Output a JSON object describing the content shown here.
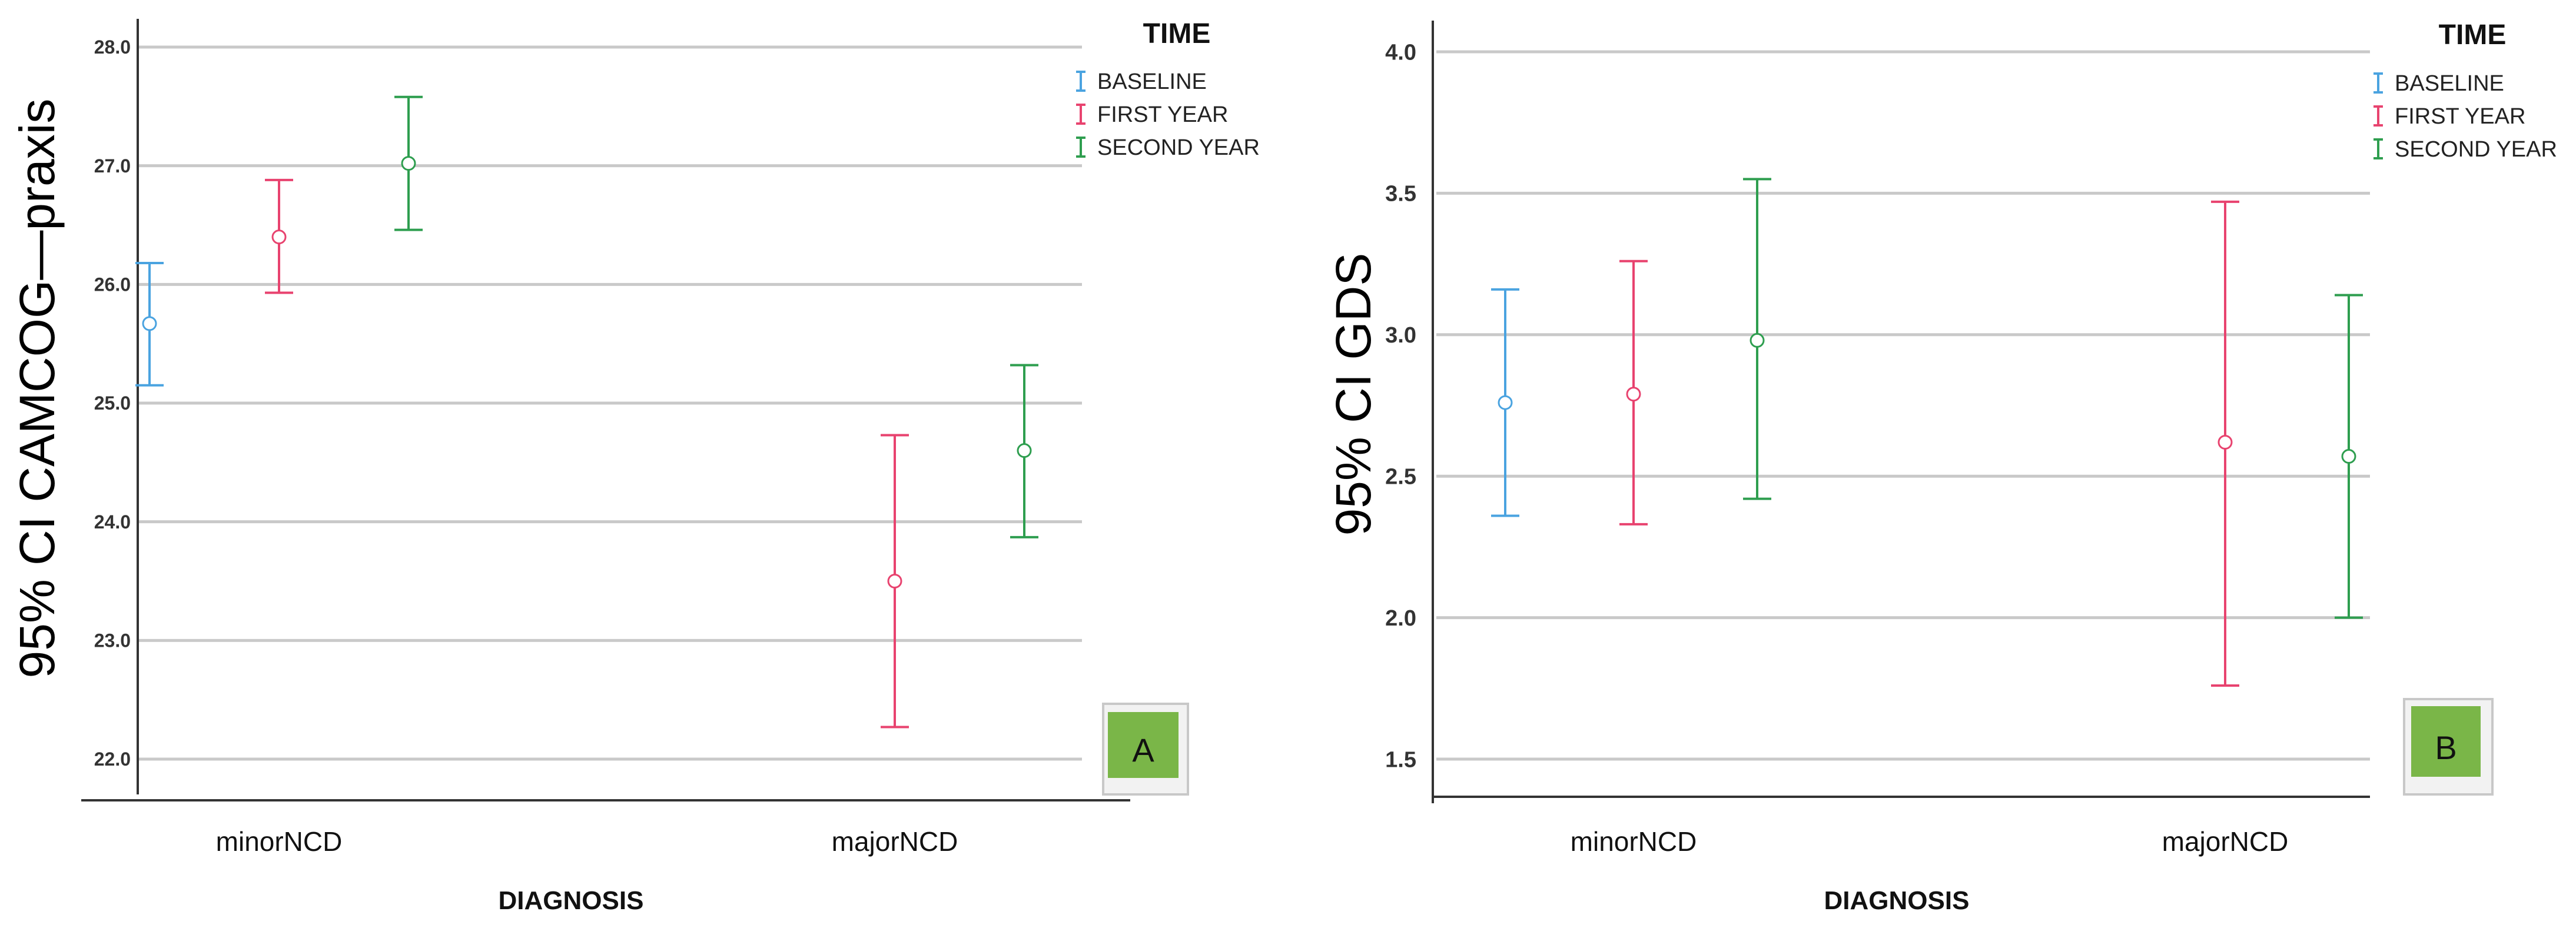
{
  "chart_data": [
    {
      "panel": "A",
      "type": "errorbar",
      "ylabel": "95% CI CAMCOG—praxis",
      "xlabel": "DIAGNOSIS",
      "legend_title": "TIME",
      "ylim": [
        21.8,
        28.3
      ],
      "yticks": [
        "22.0",
        "23.0",
        "24.0",
        "25.0",
        "26.0",
        "27.0",
        "28.0"
      ],
      "categories": [
        "minorNCD",
        "majorNCD"
      ],
      "series": [
        {
          "name": "BASELINE",
          "color": "#4aa3e0",
          "points": [
            {
              "category": "minorNCD",
              "mean": 25.67,
              "low": 25.15,
              "high": 26.18
            }
          ]
        },
        {
          "name": "FIRST YEAR",
          "color": "#e8436f",
          "points": [
            {
              "category": "minorNCD",
              "mean": 26.4,
              "low": 25.93,
              "high": 26.88
            },
            {
              "category": "majorNCD",
              "mean": 23.5,
              "low": 22.27,
              "high": 24.73
            }
          ]
        },
        {
          "name": "SECOND YEAR",
          "color": "#2e9e4f",
          "points": [
            {
              "category": "minorNCD",
              "mean": 27.02,
              "low": 26.46,
              "high": 27.58
            },
            {
              "category": "majorNCD",
              "mean": 24.6,
              "low": 23.87,
              "high": 25.32
            }
          ]
        }
      ]
    },
    {
      "panel": "B",
      "type": "errorbar",
      "ylabel": "95% CI GDS",
      "xlabel": "DIAGNOSIS",
      "legend_title": "TIME",
      "ylim": [
        1.35,
        4.1
      ],
      "yticks": [
        "1.5",
        "2.0",
        "2.5",
        "3.0",
        "3.5",
        "4.0"
      ],
      "categories": [
        "minorNCD",
        "majorNCD"
      ],
      "series": [
        {
          "name": "BASELINE",
          "color": "#4aa3e0",
          "points": [
            {
              "category": "minorNCD",
              "mean": 2.76,
              "low": 2.36,
              "high": 3.16
            }
          ]
        },
        {
          "name": "FIRST YEAR",
          "color": "#e8436f",
          "points": [
            {
              "category": "minorNCD",
              "mean": 2.79,
              "low": 2.33,
              "high": 3.26
            },
            {
              "category": "majorNCD",
              "mean": 2.62,
              "low": 1.76,
              "high": 3.47
            }
          ]
        },
        {
          "name": "SECOND YEAR",
          "color": "#2e9e4f",
          "points": [
            {
              "category": "minorNCD",
              "mean": 2.98,
              "low": 2.42,
              "high": 3.55
            },
            {
              "category": "majorNCD",
              "mean": 2.57,
              "low": 2.0,
              "high": 3.14
            }
          ]
        }
      ]
    }
  ]
}
